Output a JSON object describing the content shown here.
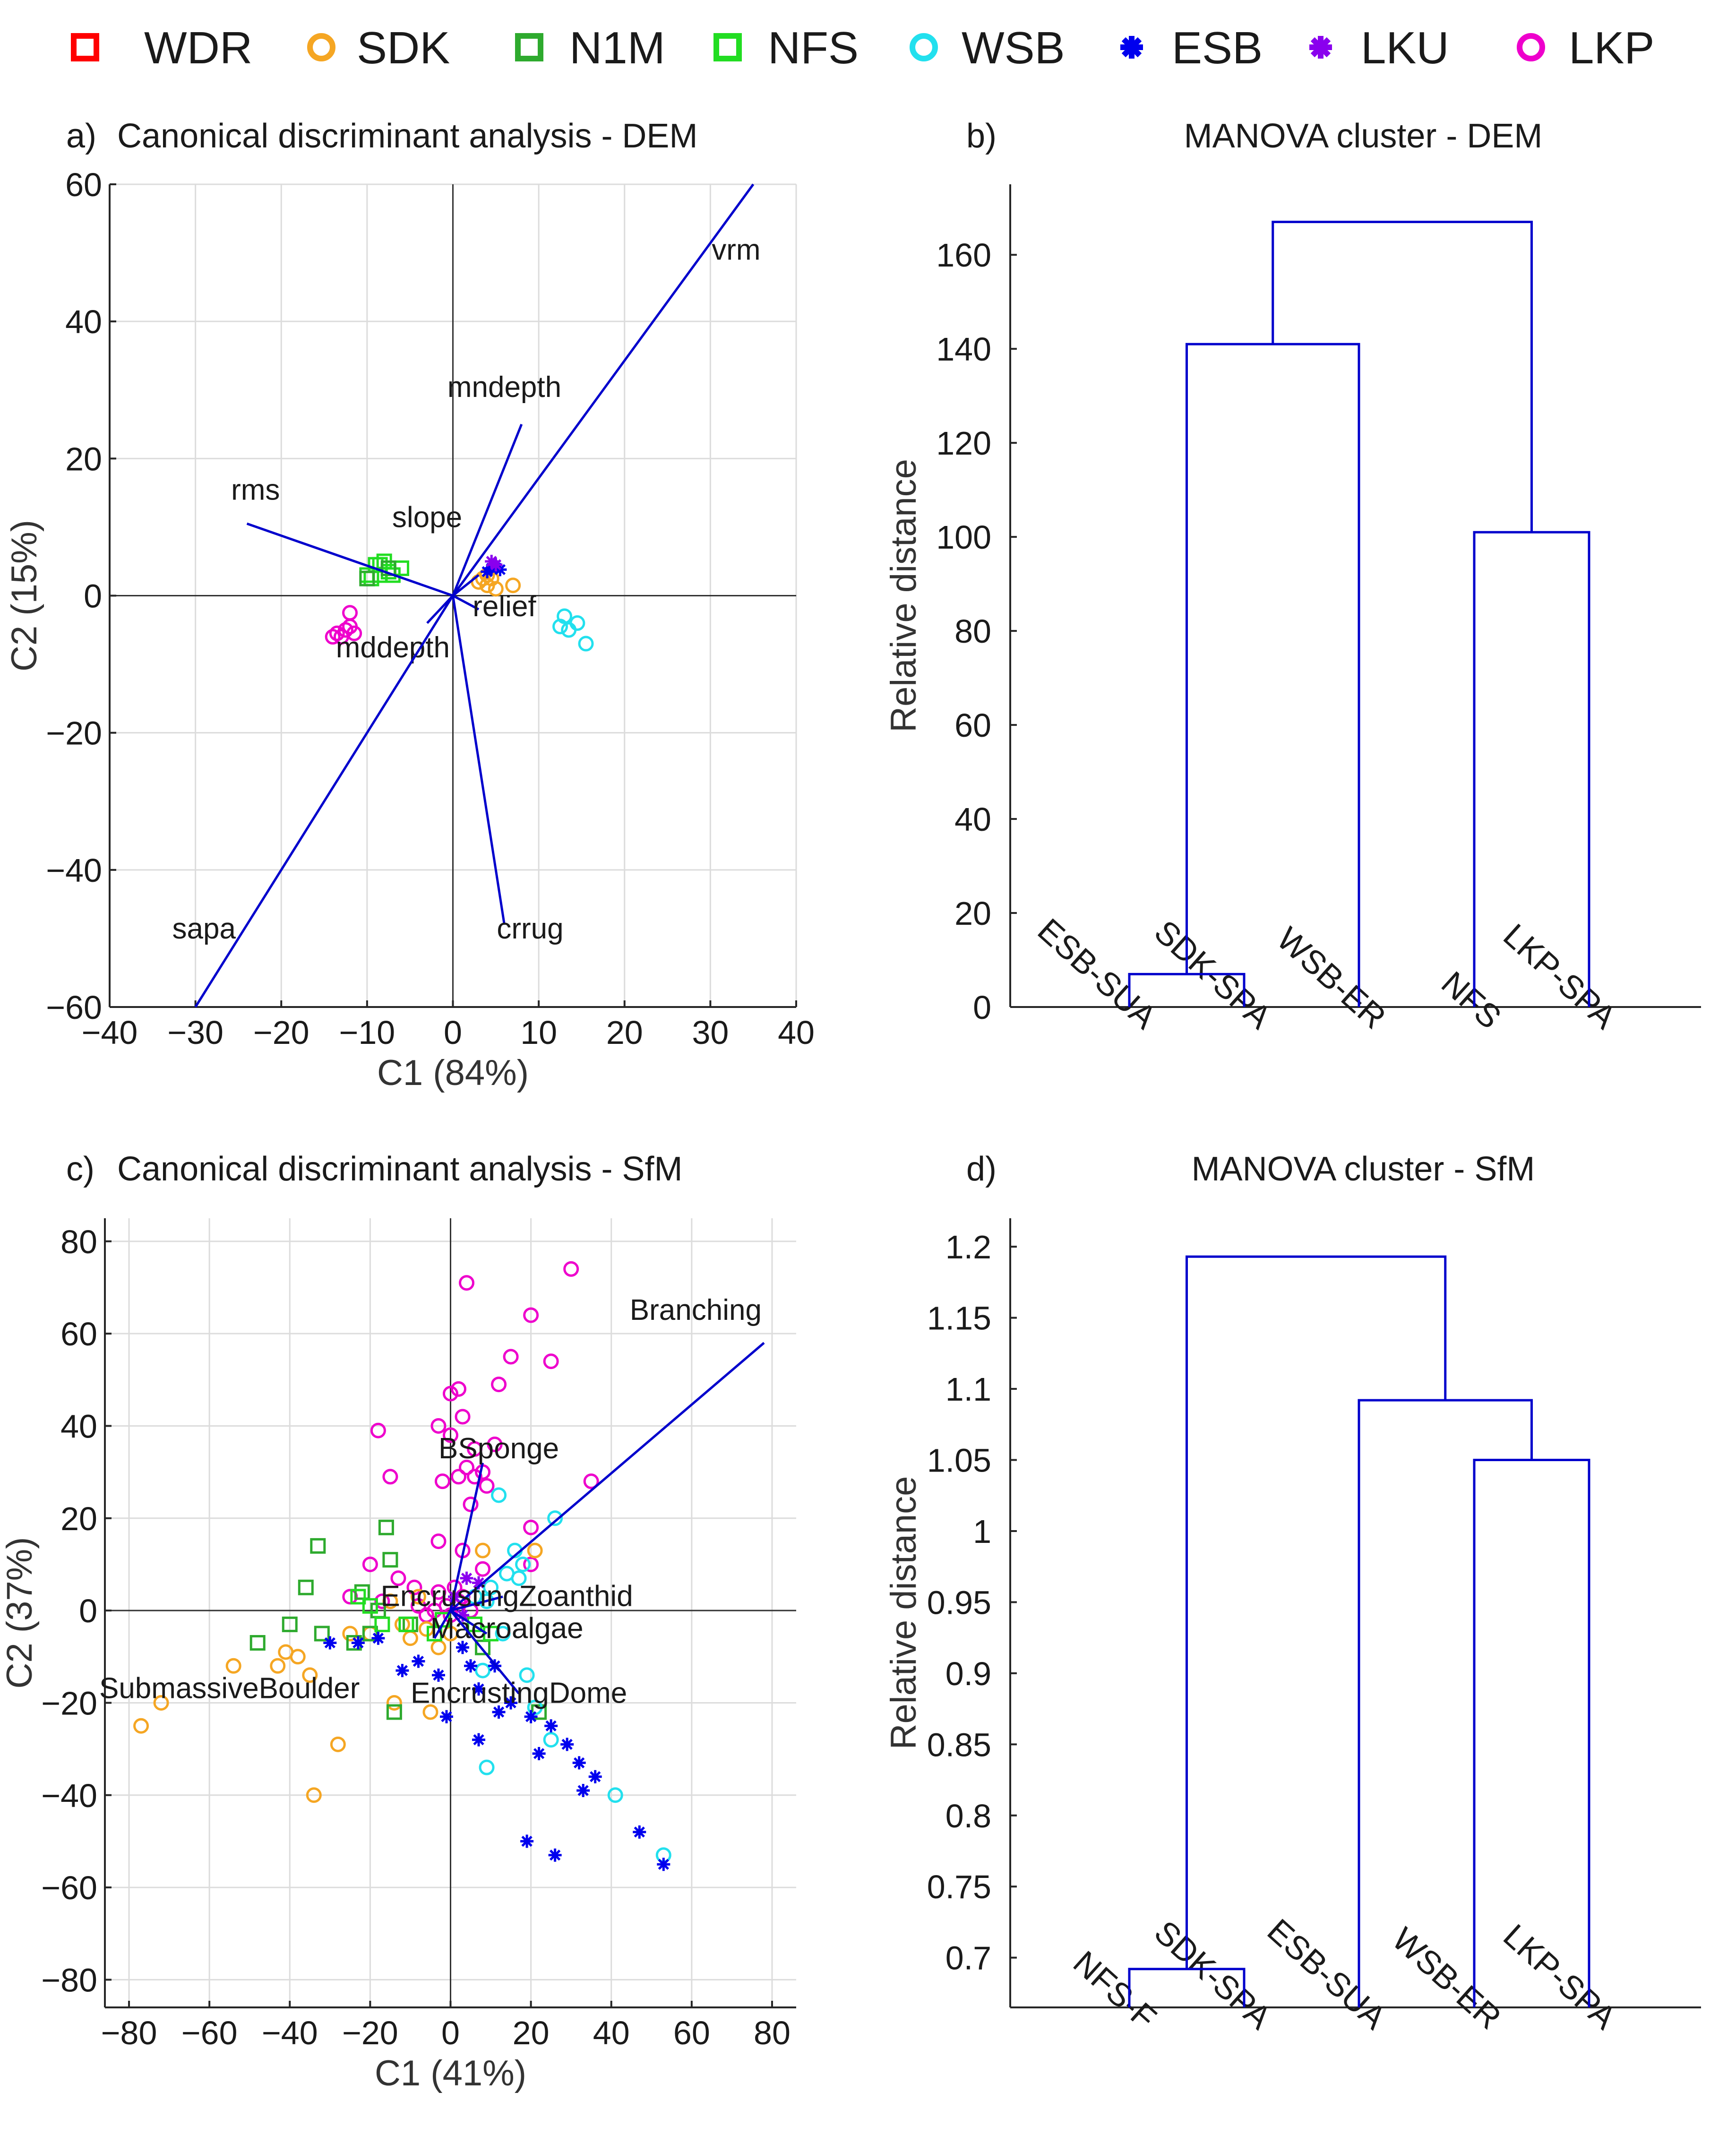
{
  "legend": [
    {
      "label": "WDR",
      "marker": "square",
      "color": "#ff0000"
    },
    {
      "label": "SDK",
      "marker": "circle",
      "color": "#f5a623"
    },
    {
      "label": "N1M",
      "marker": "square",
      "color": "#2eaa2e"
    },
    {
      "label": "NFS",
      "marker": "square",
      "color": "#22dd22"
    },
    {
      "label": "WSB",
      "marker": "circle",
      "color": "#22e0ee"
    },
    {
      "label": "ESB",
      "marker": "asterisk",
      "color": "#0000ee"
    },
    {
      "label": "LKU",
      "marker": "asterisk",
      "color": "#8a00ee"
    },
    {
      "label": "LKP",
      "marker": "circle",
      "color": "#ee00cc"
    }
  ],
  "chart_data": [
    {
      "panel": "a)",
      "type": "scatter",
      "title": "Canonical discriminant analysis - DEM",
      "xlabel": "C1 (84%)",
      "ylabel": "C2 (15%)",
      "xlim": [
        -40,
        40
      ],
      "ylim": [
        -60,
        60
      ],
      "xticks": [
        -40,
        -30,
        -20,
        -10,
        0,
        10,
        20,
        30,
        40
      ],
      "xtick_labels": [
        "−40",
        "−30",
        "−20",
        "−10",
        "0",
        "10",
        "20",
        "30",
        "40"
      ],
      "yticks": [
        -60,
        -40,
        -20,
        0,
        20,
        40,
        60
      ],
      "ytick_labels": [
        "−60",
        "−40",
        "−20",
        "0",
        "20",
        "40",
        "60"
      ],
      "grid": true,
      "vectors": [
        {
          "label": "vrm",
          "x": 35,
          "y": 60,
          "lx": 33,
          "ly": 49
        },
        {
          "label": "mndepth",
          "x": 8,
          "y": 25,
          "lx": 6,
          "ly": 29
        },
        {
          "label": "rms",
          "x": -24,
          "y": 10.5,
          "lx": -23,
          "ly": 14
        },
        {
          "label": "slope",
          "x": 3,
          "y": 3,
          "lx": -3,
          "ly": 10
        },
        {
          "label": "relief",
          "x": 3,
          "y": -2,
          "lx": 6,
          "ly": -3
        },
        {
          "label": "mddepth",
          "x": -3,
          "y": -4,
          "lx": -7,
          "ly": -9
        },
        {
          "label": "sapa",
          "x": -30,
          "y": -60,
          "lx": -29,
          "ly": -50
        },
        {
          "label": "crrug",
          "x": 6,
          "y": -48,
          "lx": 9,
          "ly": -50
        }
      ],
      "series": [
        {
          "name": "NFS",
          "points": [
            [
              -9,
              4.5
            ],
            [
              -8.5,
              3
            ],
            [
              -8,
              5
            ],
            [
              -7.5,
              3.5
            ],
            [
              -9.5,
              2.5
            ],
            [
              -7,
              3
            ],
            [
              -6,
              4
            ],
            [
              -8.5,
              4.5
            ],
            [
              -10,
              3
            ]
          ]
        },
        {
          "name": "N1M",
          "points": [
            [
              -10,
              2.5
            ],
            [
              -7.5,
              4
            ]
          ]
        },
        {
          "name": "LKP",
          "points": [
            [
              -12,
              -2.5
            ],
            [
              -12.5,
              -5
            ],
            [
              -13,
              -6
            ],
            [
              -14,
              -6
            ],
            [
              -11.5,
              -5.5
            ],
            [
              -13.5,
              -5.5
            ],
            [
              -12,
              -4.5
            ]
          ]
        },
        {
          "name": "SDK",
          "points": [
            [
              3,
              2
            ],
            [
              4,
              1.5
            ],
            [
              4.5,
              2.5
            ],
            [
              5,
              1
            ],
            [
              4,
              3
            ],
            [
              7,
              1.5
            ],
            [
              3.5,
              2.5
            ]
          ]
        },
        {
          "name": "ESB",
          "points": [
            [
              4.5,
              4
            ],
            [
              5,
              4.5
            ],
            [
              5.5,
              3.8
            ],
            [
              4,
              3.5
            ]
          ]
        },
        {
          "name": "LKU",
          "points": [
            [
              5,
              4.5
            ],
            [
              4.5,
              5
            ]
          ]
        },
        {
          "name": "WSB",
          "points": [
            [
              13,
              -3
            ],
            [
              14.5,
              -4
            ],
            [
              15.5,
              -7
            ],
            [
              13.5,
              -5
            ],
            [
              12.5,
              -4.5
            ]
          ]
        }
      ]
    },
    {
      "panel": "b)",
      "type": "dendrogram",
      "title": "MANOVA cluster - DEM",
      "ylabel": "Relative distance",
      "ylim": [
        0,
        175
      ],
      "yticks": [
        0,
        20,
        40,
        60,
        80,
        100,
        120,
        140,
        160
      ],
      "ytick_labels": [
        "0",
        "20",
        "40",
        "60",
        "80",
        "100",
        "120",
        "140",
        "160"
      ],
      "leaves": [
        "ESB-SUA",
        "SDK-SPA",
        "WSB-ER",
        "NFS",
        "LKP-SPA"
      ],
      "merges": [
        {
          "left": [
            "leaf",
            0
          ],
          "right": [
            "leaf",
            1
          ],
          "height": 7
        },
        {
          "left": [
            "node",
            0
          ],
          "right": [
            "leaf",
            2
          ],
          "height": 141
        },
        {
          "left": [
            "leaf",
            3
          ],
          "right": [
            "leaf",
            4
          ],
          "height": 101
        },
        {
          "left": [
            "node",
            1
          ],
          "right": [
            "node",
            2
          ],
          "height": 167
        }
      ]
    },
    {
      "panel": "c)",
      "type": "scatter",
      "title": "Canonical discriminant analysis - SfM",
      "xlabel": "C1 (41%)",
      "ylabel": "C2 (37%)",
      "xlim": [
        -86,
        86
      ],
      "ylim": [
        -86,
        85
      ],
      "xticks": [
        -80,
        -60,
        -40,
        -20,
        0,
        20,
        40,
        60,
        80
      ],
      "xtick_labels": [
        "−80",
        "−60",
        "−40",
        "−20",
        "0",
        "20",
        "40",
        "60",
        "80"
      ],
      "yticks": [
        -80,
        -60,
        -40,
        -20,
        0,
        20,
        40,
        60,
        80
      ],
      "ytick_labels": [
        "−80",
        "−60",
        "−40",
        "−20",
        "0",
        "20",
        "40",
        "60",
        "80"
      ],
      "grid": true,
      "vectors": [
        {
          "label": "Branching",
          "x": 78,
          "y": 58,
          "lx": 61,
          "ly": 63
        },
        {
          "label": "BSponge",
          "x": 8,
          "y": 32,
          "lx": 12,
          "ly": 33
        },
        {
          "label": "EncrustingZoanthid",
          "x": 13,
          "y": 3,
          "lx": 14,
          "ly": 1
        },
        {
          "label": "Macroalgae",
          "x": 9,
          "y": -5,
          "lx": 14,
          "ly": -6
        },
        {
          "label": "EncrustingDome",
          "x": 17,
          "y": -18,
          "lx": 17,
          "ly": -20
        },
        {
          "label": "SubmassiveBoulder",
          "x": -4,
          "y": -6,
          "lx": -55,
          "ly": -19
        }
      ],
      "series": [
        {
          "name": "LKP",
          "points": [
            [
              30,
              74
            ],
            [
              4,
              71
            ],
            [
              20,
              64
            ],
            [
              15,
              55
            ],
            [
              25,
              54
            ],
            [
              12,
              49
            ],
            [
              0,
              47
            ],
            [
              2,
              48
            ],
            [
              -18,
              39
            ],
            [
              -3,
              40
            ],
            [
              3,
              42
            ],
            [
              0,
              38
            ],
            [
              6,
              35
            ],
            [
              11,
              36
            ],
            [
              4,
              31
            ],
            [
              8,
              30
            ],
            [
              -2,
              28
            ],
            [
              2,
              29
            ],
            [
              6,
              29
            ],
            [
              35,
              28
            ],
            [
              -15,
              29
            ],
            [
              9,
              27
            ],
            [
              5,
              23
            ],
            [
              20,
              18
            ],
            [
              -3,
              15
            ],
            [
              3,
              13
            ],
            [
              -20,
              10
            ],
            [
              -13,
              7
            ],
            [
              -9,
              5
            ],
            [
              -3,
              4
            ],
            [
              -25,
              3
            ],
            [
              -17,
              2
            ],
            [
              -1,
              1
            ],
            [
              2,
              2
            ],
            [
              -4,
              0
            ],
            [
              5,
              0
            ],
            [
              -8,
              1
            ],
            [
              -6,
              -1
            ],
            [
              0,
              -1
            ],
            [
              3,
              3
            ],
            [
              1,
              5
            ],
            [
              20,
              10
            ],
            [
              8,
              9
            ]
          ]
        },
        {
          "name": "SDK",
          "points": [
            [
              -77,
              -25
            ],
            [
              -72,
              -20
            ],
            [
              -54,
              -12
            ],
            [
              -43,
              -12
            ],
            [
              -41,
              -9
            ],
            [
              -38,
              -10
            ],
            [
              -35,
              -14
            ],
            [
              -28,
              -29
            ],
            [
              -34,
              -40
            ],
            [
              -14,
              -20
            ],
            [
              -5,
              -22
            ],
            [
              -20,
              -5
            ],
            [
              -10,
              -6
            ],
            [
              -3,
              -8
            ],
            [
              0,
              -5
            ],
            [
              -15,
              2
            ],
            [
              -8,
              3
            ],
            [
              8,
              13
            ],
            [
              21,
              13
            ],
            [
              -25,
              -5
            ],
            [
              -12,
              -3
            ],
            [
              -6,
              -4
            ]
          ]
        },
        {
          "name": "N1M",
          "points": [
            [
              -48,
              -7
            ],
            [
              -40,
              -3
            ],
            [
              -36,
              5
            ],
            [
              -33,
              14
            ],
            [
              -32,
              -5
            ],
            [
              -24,
              -7
            ],
            [
              -20,
              -5
            ],
            [
              -16,
              18
            ],
            [
              -15,
              11
            ],
            [
              -14,
              -22
            ],
            [
              -22,
              4
            ],
            [
              -18,
              0
            ],
            [
              22,
              -22
            ],
            [
              8,
              -8
            ],
            [
              -10,
              -3
            ]
          ]
        },
        {
          "name": "NFS",
          "points": [
            [
              -23,
              3
            ],
            [
              -20,
              1
            ],
            [
              -17,
              -3
            ],
            [
              -11,
              -3
            ],
            [
              -4,
              -5
            ],
            [
              -2,
              -2
            ],
            [
              6,
              -3
            ],
            [
              10,
              -5
            ]
          ]
        },
        {
          "name": "WSB",
          "points": [
            [
              53,
              -53
            ],
            [
              41,
              -40
            ],
            [
              25,
              -28
            ],
            [
              21,
              -21
            ],
            [
              9,
              -34
            ],
            [
              8,
              -13
            ],
            [
              19,
              -14
            ],
            [
              13,
              -5
            ],
            [
              17,
              7
            ],
            [
              16,
              13
            ],
            [
              26,
              20
            ],
            [
              12,
              25
            ],
            [
              10,
              5
            ],
            [
              14,
              8
            ],
            [
              18,
              10
            ],
            [
              6,
              3
            ],
            [
              9,
              2
            ]
          ]
        },
        {
          "name": "ESB",
          "points": [
            [
              53,
              -55
            ],
            [
              47,
              -48
            ],
            [
              36,
              -36
            ],
            [
              33,
              -39
            ],
            [
              32,
              -33
            ],
            [
              29,
              -29
            ],
            [
              25,
              -25
            ],
            [
              26,
              -53
            ],
            [
              19,
              -50
            ],
            [
              22,
              -31
            ],
            [
              20,
              -23
            ],
            [
              15,
              -20
            ],
            [
              12,
              -22
            ],
            [
              7,
              -28
            ],
            [
              7,
              -17
            ],
            [
              5,
              -12
            ],
            [
              -1,
              -23
            ],
            [
              -3,
              -14
            ],
            [
              -8,
              -11
            ],
            [
              -12,
              -13
            ],
            [
              -18,
              -6
            ],
            [
              -23,
              -7
            ],
            [
              -30,
              -7
            ],
            [
              11,
              -12
            ],
            [
              3,
              -8
            ]
          ]
        },
        {
          "name": "LKU",
          "points": [
            [
              4,
              7
            ],
            [
              7,
              6
            ],
            [
              1,
              3
            ],
            [
              3,
              -1
            ]
          ]
        }
      ]
    },
    {
      "panel": "d)",
      "type": "dendrogram",
      "title": "MANOVA cluster - SfM",
      "ylabel": "Relative distance",
      "ylim": [
        0.665,
        1.22
      ],
      "yticks": [
        0.7,
        0.75,
        0.8,
        0.85,
        0.9,
        0.95,
        1,
        1.05,
        1.1,
        1.15,
        1.2
      ],
      "ytick_labels": [
        "0.7",
        "0.75",
        "0.8",
        "0.85",
        "0.9",
        "0.95",
        "1",
        "1.05",
        "1.1",
        "1.15",
        "1.2"
      ],
      "leaves": [
        "NFS-F",
        "SDK-SPA",
        "ESB-SUA",
        "WSB-ER",
        "LKP-SPA"
      ],
      "merges": [
        {
          "left": [
            "leaf",
            0
          ],
          "right": [
            "leaf",
            1
          ],
          "height": 0.692
        },
        {
          "left": [
            "leaf",
            3
          ],
          "right": [
            "leaf",
            4
          ],
          "height": 1.05
        },
        {
          "left": [
            "leaf",
            2
          ],
          "right": [
            "node",
            1
          ],
          "height": 1.092
        },
        {
          "left": [
            "node",
            0
          ],
          "right": [
            "node",
            2
          ],
          "height": 1.193
        }
      ]
    }
  ]
}
